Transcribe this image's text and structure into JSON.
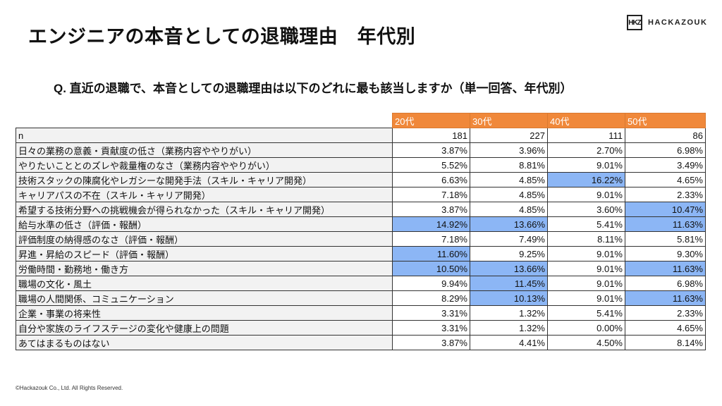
{
  "title": "エンジニアの本音としての退職理由　年代別",
  "logo": {
    "mark": "HKZ",
    "text": "HACKAZOUK"
  },
  "question": "Q.  直近の退職で、本音としての退職理由は以下のどれに最も該当しますか（単一回答、年代別）",
  "colors": {
    "header": "#f0883a",
    "highlight": "#8cb6f5",
    "label_bg": "#f2f2f2"
  },
  "table": {
    "columns": [
      "20代",
      "30代",
      "40代",
      "50代"
    ],
    "rows": [
      {
        "label": "n",
        "values": [
          "181",
          "227",
          "111",
          "86"
        ],
        "highlight": [
          false,
          false,
          false,
          false
        ]
      },
      {
        "label": "日々の業務の意義・貢献度の低さ（業務内容ややりがい）",
        "values": [
          "3.87%",
          "3.96%",
          "2.70%",
          "6.98%"
        ],
        "highlight": [
          false,
          false,
          false,
          false
        ]
      },
      {
        "label": "やりたいこととのズレや裁量権のなさ（業務内容ややりがい）",
        "values": [
          "5.52%",
          "8.81%",
          "9.01%",
          "3.49%"
        ],
        "highlight": [
          false,
          false,
          false,
          false
        ]
      },
      {
        "label": "技術スタックの陳腐化やレガシーな開発手法（スキル・キャリア開発）",
        "values": [
          "6.63%",
          "4.85%",
          "16.22%",
          "4.65%"
        ],
        "highlight": [
          false,
          false,
          true,
          false
        ]
      },
      {
        "label": "キャリアパスの不在（スキル・キャリア開発）",
        "values": [
          "7.18%",
          "4.85%",
          "9.01%",
          "2.33%"
        ],
        "highlight": [
          false,
          false,
          false,
          false
        ]
      },
      {
        "label": "希望する技術分野への挑戦機会が得られなかった（スキル・キャリア開発）",
        "values": [
          "3.87%",
          "4.85%",
          "3.60%",
          "10.47%"
        ],
        "highlight": [
          false,
          false,
          false,
          true
        ]
      },
      {
        "label": "給与水準の低さ（評価・報酬）",
        "values": [
          "14.92%",
          "13.66%",
          "5.41%",
          "11.63%"
        ],
        "highlight": [
          true,
          true,
          false,
          true
        ]
      },
      {
        "label": "評価制度の納得感のなさ（評価・報酬）",
        "values": [
          "7.18%",
          "7.49%",
          "8.11%",
          "5.81%"
        ],
        "highlight": [
          false,
          false,
          false,
          false
        ]
      },
      {
        "label": "昇進・昇給のスピード（評価・報酬）",
        "values": [
          "11.60%",
          "9.25%",
          "9.01%",
          "9.30%"
        ],
        "highlight": [
          true,
          false,
          false,
          false
        ]
      },
      {
        "label": "労働時間・勤務地・働き方",
        "values": [
          "10.50%",
          "13.66%",
          "9.01%",
          "11.63%"
        ],
        "highlight": [
          true,
          true,
          false,
          true
        ]
      },
      {
        "label": "職場の文化・風土",
        "values": [
          "9.94%",
          "11.45%",
          "9.01%",
          "6.98%"
        ],
        "highlight": [
          false,
          true,
          false,
          false
        ]
      },
      {
        "label": "職場の人間関係、コミュニケーション",
        "values": [
          "8.29%",
          "10.13%",
          "9.01%",
          "11.63%"
        ],
        "highlight": [
          false,
          true,
          false,
          true
        ]
      },
      {
        "label": "企業・事業の将来性",
        "values": [
          "3.31%",
          "1.32%",
          "5.41%",
          "2.33%"
        ],
        "highlight": [
          false,
          false,
          false,
          false
        ]
      },
      {
        "label": "自分や家族のライフステージの変化や健康上の問題",
        "values": [
          "3.31%",
          "1.32%",
          "0.00%",
          "4.65%"
        ],
        "highlight": [
          false,
          false,
          false,
          false
        ]
      },
      {
        "label": "あてはまるものはない",
        "values": [
          "3.87%",
          "4.41%",
          "4.50%",
          "8.14%"
        ],
        "highlight": [
          false,
          false,
          false,
          false
        ]
      }
    ]
  },
  "footer": "©Hackazouk Co., Ltd. All Rights Reserved."
}
